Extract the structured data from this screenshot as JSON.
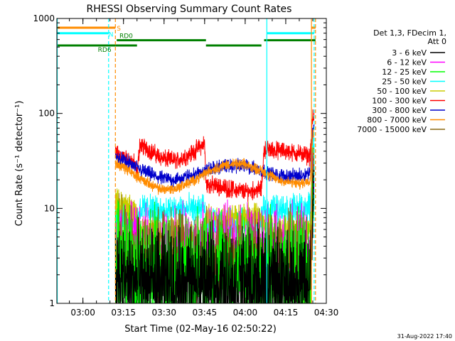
{
  "chart_data": {
    "type": "line",
    "title": "RHESSI Observing Summary Count Rates",
    "xlabel": "Start Time (02-May-16 02:50:22)",
    "ylabel": "Count Rate (s⁻¹ detector⁻¹)",
    "yscale": "log",
    "ylim": [
      1,
      1000
    ],
    "xlim": [
      "02:50:22",
      "04:30:00"
    ],
    "x_ticks": [
      "03:00",
      "03:15",
      "03:30",
      "03:45",
      "04:00",
      "04:15",
      "04:30"
    ],
    "y_ticks": [
      "1",
      "10",
      "100",
      "1000"
    ],
    "footer": "31-Aug-2022 17:40",
    "legend": {
      "placement": "right",
      "header": [
        "Det 1,3, FDecim 1,",
        "Att 0"
      ],
      "entries": [
        {
          "label": "3 - 6 keV",
          "color": "#000000"
        },
        {
          "label": "6 - 12 keV",
          "color": "#ff00ff"
        },
        {
          "label": "12 - 25 keV",
          "color": "#00ff00"
        },
        {
          "label": "25 - 50 keV",
          "color": "#00ffff"
        },
        {
          "label": "50 - 100 keV",
          "color": "#cccc00"
        },
        {
          "label": "100 - 300 keV",
          "color": "#ff0000"
        },
        {
          "label": "300 - 800 keV",
          "color": "#0000cc"
        },
        {
          "label": "800 - 7000 keV",
          "color": "#ff8c00"
        },
        {
          "label": "7000 - 15000 keV",
          "color": "#8b6914"
        }
      ]
    },
    "flags": [
      {
        "label": "S",
        "color": "#ff8c00",
        "segments": [
          [
            "02:50:22",
            "03:12:00"
          ],
          [
            "04:24:30",
            "04:26:00"
          ]
        ],
        "level": 800
      },
      {
        "label": "N",
        "color": "#00ffff",
        "segments": [
          [
            "02:50:22",
            "03:09:30"
          ],
          [
            "04:08:00",
            "04:25:30"
          ]
        ],
        "level": 700
      },
      {
        "label": "RD0",
        "color": "#008000",
        "segments": [
          [
            "03:12:30",
            "03:45:30"
          ],
          [
            "04:07:00",
            "04:26:00"
          ]
        ],
        "level": 590
      },
      {
        "label": "RD6",
        "color": "#008000",
        "segments": [
          [
            "02:50:22",
            "03:12:00"
          ],
          [
            "03:12:00",
            "03:20:00"
          ],
          [
            "03:45:30",
            "04:06:00"
          ]
        ],
        "level": 520
      }
    ],
    "vlines": [
      {
        "time": "02:50:30",
        "color": "#00ffff",
        "style": "solid"
      },
      {
        "time": "03:09:30",
        "color": "#00ffff",
        "style": "dashed"
      },
      {
        "time": "03:12:00",
        "color": "#ff8c00",
        "style": "dashed"
      },
      {
        "time": "04:08:00",
        "color": "#00ffff",
        "style": "solid"
      },
      {
        "time": "04:24:30",
        "color": "#ff8c00",
        "style": "solid"
      },
      {
        "time": "04:25:30",
        "color": "#00ffff",
        "style": "dashed"
      },
      {
        "time": "04:26:00",
        "color": "#ff8c00",
        "style": "dashed"
      }
    ],
    "data_window": [
      "03:12:00",
      "04:25:30"
    ],
    "series": [
      {
        "name": "100 - 300 keV",
        "color": "#ff0000",
        "noise": 0.05,
        "points": [
          [
            "03:12:00",
            38
          ],
          [
            "03:14:00",
            36
          ],
          [
            "03:16:00",
            33
          ],
          [
            "03:19:00",
            30
          ],
          [
            "03:20:00",
            22
          ],
          [
            "03:21:00",
            47
          ],
          [
            "03:24:00",
            42
          ],
          [
            "03:30:00",
            33
          ],
          [
            "03:35:00",
            32
          ],
          [
            "03:40:00",
            38
          ],
          [
            "03:45:00",
            48
          ],
          [
            "03:45:30",
            18
          ],
          [
            "03:50:00",
            17
          ],
          [
            "04:00:00",
            15
          ],
          [
            "04:06:00",
            16
          ],
          [
            "04:07:00",
            42
          ],
          [
            "04:15:00",
            40
          ],
          [
            "04:22:00",
            37
          ],
          [
            "04:24:00",
            35
          ],
          [
            "04:25:00",
            90
          ]
        ]
      },
      {
        "name": "300 - 800 keV",
        "color": "#0000cc",
        "noise": 0.04,
        "points": [
          [
            "03:12:00",
            35
          ],
          [
            "03:16:00",
            31
          ],
          [
            "03:22:00",
            25
          ],
          [
            "03:28:00",
            21
          ],
          [
            "03:34:00",
            20
          ],
          [
            "03:40:00",
            22
          ],
          [
            "03:47:00",
            26
          ],
          [
            "03:53:00",
            28
          ],
          [
            "04:00:00",
            28
          ],
          [
            "04:06:00",
            25
          ],
          [
            "04:12:00",
            22
          ],
          [
            "04:20:00",
            22
          ],
          [
            "04:24:00",
            24
          ],
          [
            "04:25:00",
            70
          ]
        ]
      },
      {
        "name": "800 - 7000 keV",
        "color": "#ff8c00",
        "noise": 0.03,
        "points": [
          [
            "03:12:00",
            30
          ],
          [
            "03:16:00",
            26
          ],
          [
            "03:22:00",
            20
          ],
          [
            "03:28:00",
            16
          ],
          [
            "03:34:00",
            16
          ],
          [
            "03:40:00",
            19
          ],
          [
            "03:47:00",
            25
          ],
          [
            "03:53:00",
            29
          ],
          [
            "04:00:00",
            29
          ],
          [
            "04:06:00",
            25
          ],
          [
            "04:12:00",
            20
          ],
          [
            "04:20:00",
            18
          ],
          [
            "04:24:00",
            20
          ],
          [
            "04:25:00",
            60
          ]
        ]
      },
      {
        "name": "25 - 50 keV",
        "color": "#00ffff",
        "noise": 0.08,
        "points": [
          [
            "03:12:00",
            9
          ],
          [
            "03:20:00",
            7
          ],
          [
            "03:21:00",
            10
          ],
          [
            "03:30:00",
            9.5
          ],
          [
            "03:45:00",
            10
          ],
          [
            "03:45:30",
            7
          ],
          [
            "04:06:00",
            7
          ],
          [
            "04:07:00",
            10
          ],
          [
            "04:24:00",
            10
          ],
          [
            "04:25:00",
            40
          ]
        ]
      },
      {
        "name": "50 - 100 keV",
        "color": "#cccc00",
        "noise": 0.08,
        "points": [
          [
            "03:12:00",
            12
          ],
          [
            "03:16:00",
            10
          ],
          [
            "03:20:00",
            9
          ],
          [
            "03:20:30",
            6
          ],
          [
            "03:45:00",
            5
          ],
          [
            "03:45:30",
            8
          ],
          [
            "04:06:00",
            8
          ],
          [
            "04:07:00",
            6
          ],
          [
            "04:24:00",
            6
          ],
          [
            "04:25:00",
            30
          ]
        ]
      },
      {
        "name": "6 - 12 keV",
        "color": "#ff00ff",
        "noise": 0.25,
        "points": [
          [
            "03:12:00",
            4
          ],
          [
            "03:30:00",
            3.5
          ],
          [
            "04:00:00",
            3.5
          ],
          [
            "04:24:00",
            3.5
          ],
          [
            "04:25:00",
            20
          ]
        ]
      },
      {
        "name": "7000 - 15000 keV",
        "color": "#8b6914",
        "noise": 0.25,
        "points": [
          [
            "03:12:00",
            5
          ],
          [
            "03:20:00",
            3
          ],
          [
            "04:00:00",
            3
          ],
          [
            "04:24:00",
            3
          ],
          [
            "04:25:00",
            20
          ]
        ]
      },
      {
        "name": "12 - 25 keV",
        "color": "#00ff00",
        "noise": 0.35,
        "points": [
          [
            "03:12:00",
            2.5
          ],
          [
            "03:20:00",
            2
          ],
          [
            "04:00:00",
            2
          ],
          [
            "04:24:00",
            2
          ],
          [
            "04:25:00",
            15
          ]
        ]
      },
      {
        "name": "3 - 6 keV",
        "color": "#000000",
        "noise": 0.3,
        "points": [
          [
            "03:12:00",
            1.8
          ],
          [
            "03:30:00",
            1.6
          ],
          [
            "04:00:00",
            1.6
          ],
          [
            "04:24:00",
            1.6
          ],
          [
            "04:25:00",
            12
          ]
        ]
      }
    ]
  }
}
